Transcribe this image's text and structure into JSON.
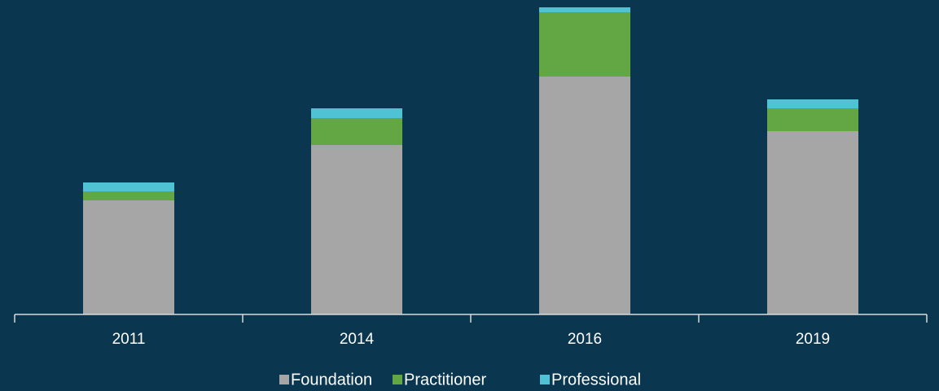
{
  "chart_data": {
    "type": "stacked_bar",
    "categories": [
      "2011",
      "2014",
      "2016",
      "2019"
    ],
    "series": [
      {
        "name": "Foundation",
        "color": "#a6a6a6",
        "values": [
          140,
          208,
          292,
          225
        ]
      },
      {
        "name": "Practitioner",
        "color": "#62a744",
        "values": [
          11,
          33,
          79,
          28
        ]
      },
      {
        "name": "Professional",
        "color": "#4fc3d4",
        "values": [
          11,
          12,
          6,
          11
        ]
      }
    ],
    "ylim": [
      0,
      386
    ]
  }
}
